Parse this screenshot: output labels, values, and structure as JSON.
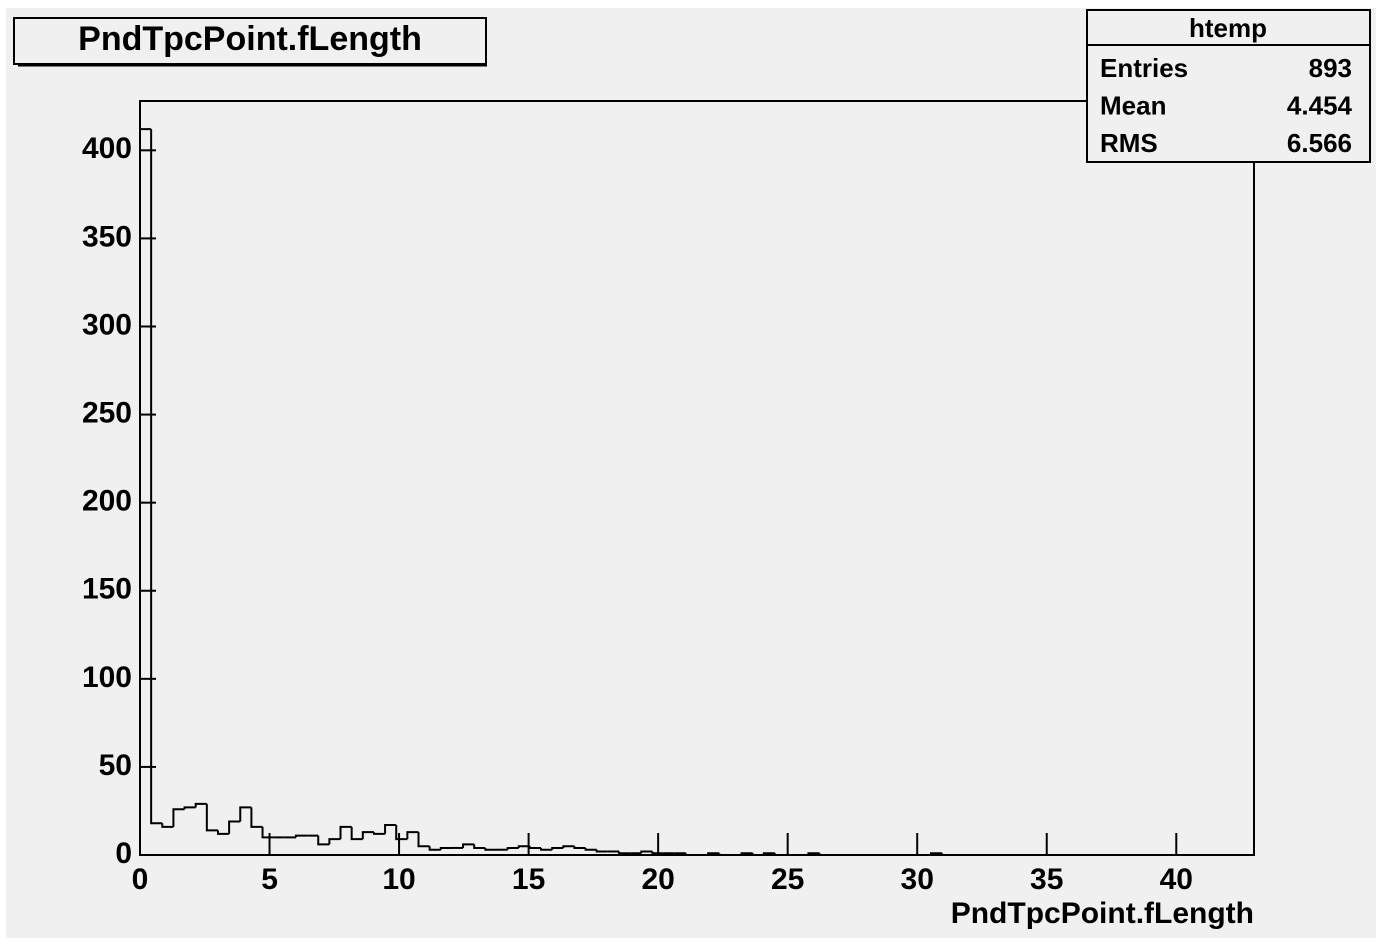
{
  "chart_data": {
    "type": "histogram",
    "title": "PndTpcPoint.fLength",
    "x_label": "PndTpcPoint.fLength",
    "stats": {
      "name": "htemp",
      "rows": [
        {
          "label": "Entries",
          "value": 893
        },
        {
          "label": "Mean",
          "value": 4.454
        },
        {
          "label": "RMS",
          "value": 6.566
        }
      ]
    },
    "bins": [
      0,
      0.43,
      0.86,
      1.29,
      1.72,
      2.15,
      2.58,
      3.01,
      3.44,
      3.87,
      4.3,
      4.73,
      5.16,
      5.59,
      6.02,
      6.45,
      6.88,
      7.31,
      7.74,
      8.17,
      8.6,
      9.03,
      9.46,
      9.89,
      10.32,
      10.75,
      11.18,
      11.61,
      12.04,
      12.47,
      12.9,
      13.33,
      13.76,
      14.19,
      14.62,
      15.05,
      15.48,
      15.91,
      16.34,
      16.77,
      17.2,
      17.63,
      18.06,
      18.49,
      18.92,
      19.35,
      19.78,
      20.21,
      20.64,
      21.07,
      21.5,
      21.93,
      22.36,
      22.79,
      23.22,
      23.65,
      24.08,
      24.51,
      24.94,
      25.37,
      25.8,
      26.23,
      26.66,
      27.09,
      27.52,
      27.95,
      28.38,
      28.81,
      29.24,
      29.67,
      30.1,
      30.53,
      30.96,
      31.39,
      31.82,
      32.25,
      32.68,
      33.11,
      33.54,
      33.97,
      34.4,
      34.83,
      35.26,
      35.69,
      36.12,
      36.55,
      36.98,
      37.41,
      37.84,
      38.27,
      38.7,
      39.13,
      39.56,
      39.99,
      40.42,
      40.85,
      41.28,
      41.71,
      42.14,
      42.57,
      43
    ],
    "values": [
      412,
      18,
      16,
      26,
      27,
      29,
      14,
      12,
      19,
      27,
      16,
      10,
      10,
      10,
      11,
      11,
      6,
      9,
      16,
      9,
      13,
      12,
      17,
      9,
      13,
      5,
      3,
      4,
      4,
      6,
      4,
      3,
      3,
      4,
      5,
      4,
      3,
      4,
      5,
      4,
      3,
      2,
      2,
      1,
      1,
      2,
      1,
      1,
      1,
      0,
      0,
      1,
      0,
      0,
      1,
      0,
      1,
      0,
      0,
      0,
      1,
      0,
      0,
      0,
      0,
      0,
      0,
      0,
      0,
      0,
      0,
      1,
      0,
      0,
      0,
      0,
      0,
      0,
      0,
      0,
      0,
      0,
      0,
      0,
      0,
      0,
      0,
      0,
      0,
      0,
      0,
      0,
      0,
      0,
      0,
      0,
      0,
      0,
      0,
      0
    ],
    "color": "#000000",
    "xlim": [
      0,
      43
    ],
    "ylim": [
      0,
      428
    ],
    "xticks": [
      0,
      5,
      10,
      15,
      20,
      25,
      30,
      35,
      40
    ],
    "yticks": [
      0,
      50,
      100,
      150,
      200,
      250,
      300,
      350,
      400
    ]
  }
}
